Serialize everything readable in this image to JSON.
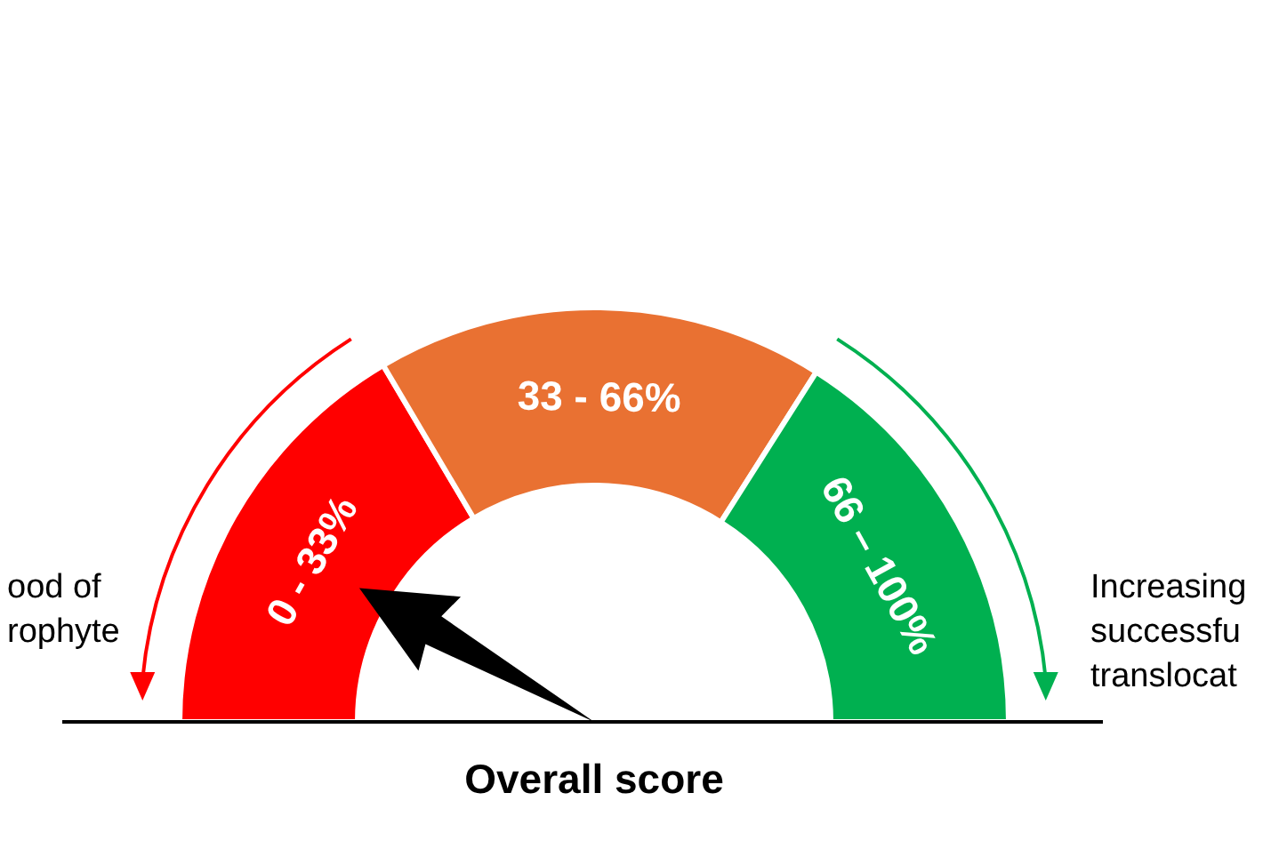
{
  "chart_data": {
    "type": "donut",
    "xlabel": "Overall score",
    "categories": [
      "0 - 33%",
      "33 - 66%",
      "66 – 100%"
    ],
    "values": [
      33,
      35,
      32
    ],
    "colors": [
      "#ff0000",
      "#e97132",
      "#00b050"
    ],
    "needle": "0 - 33%",
    "annotations": [
      "ood of\nrophyte",
      "Increasing\nsuccessfu\ntranslocat"
    ]
  }
}
